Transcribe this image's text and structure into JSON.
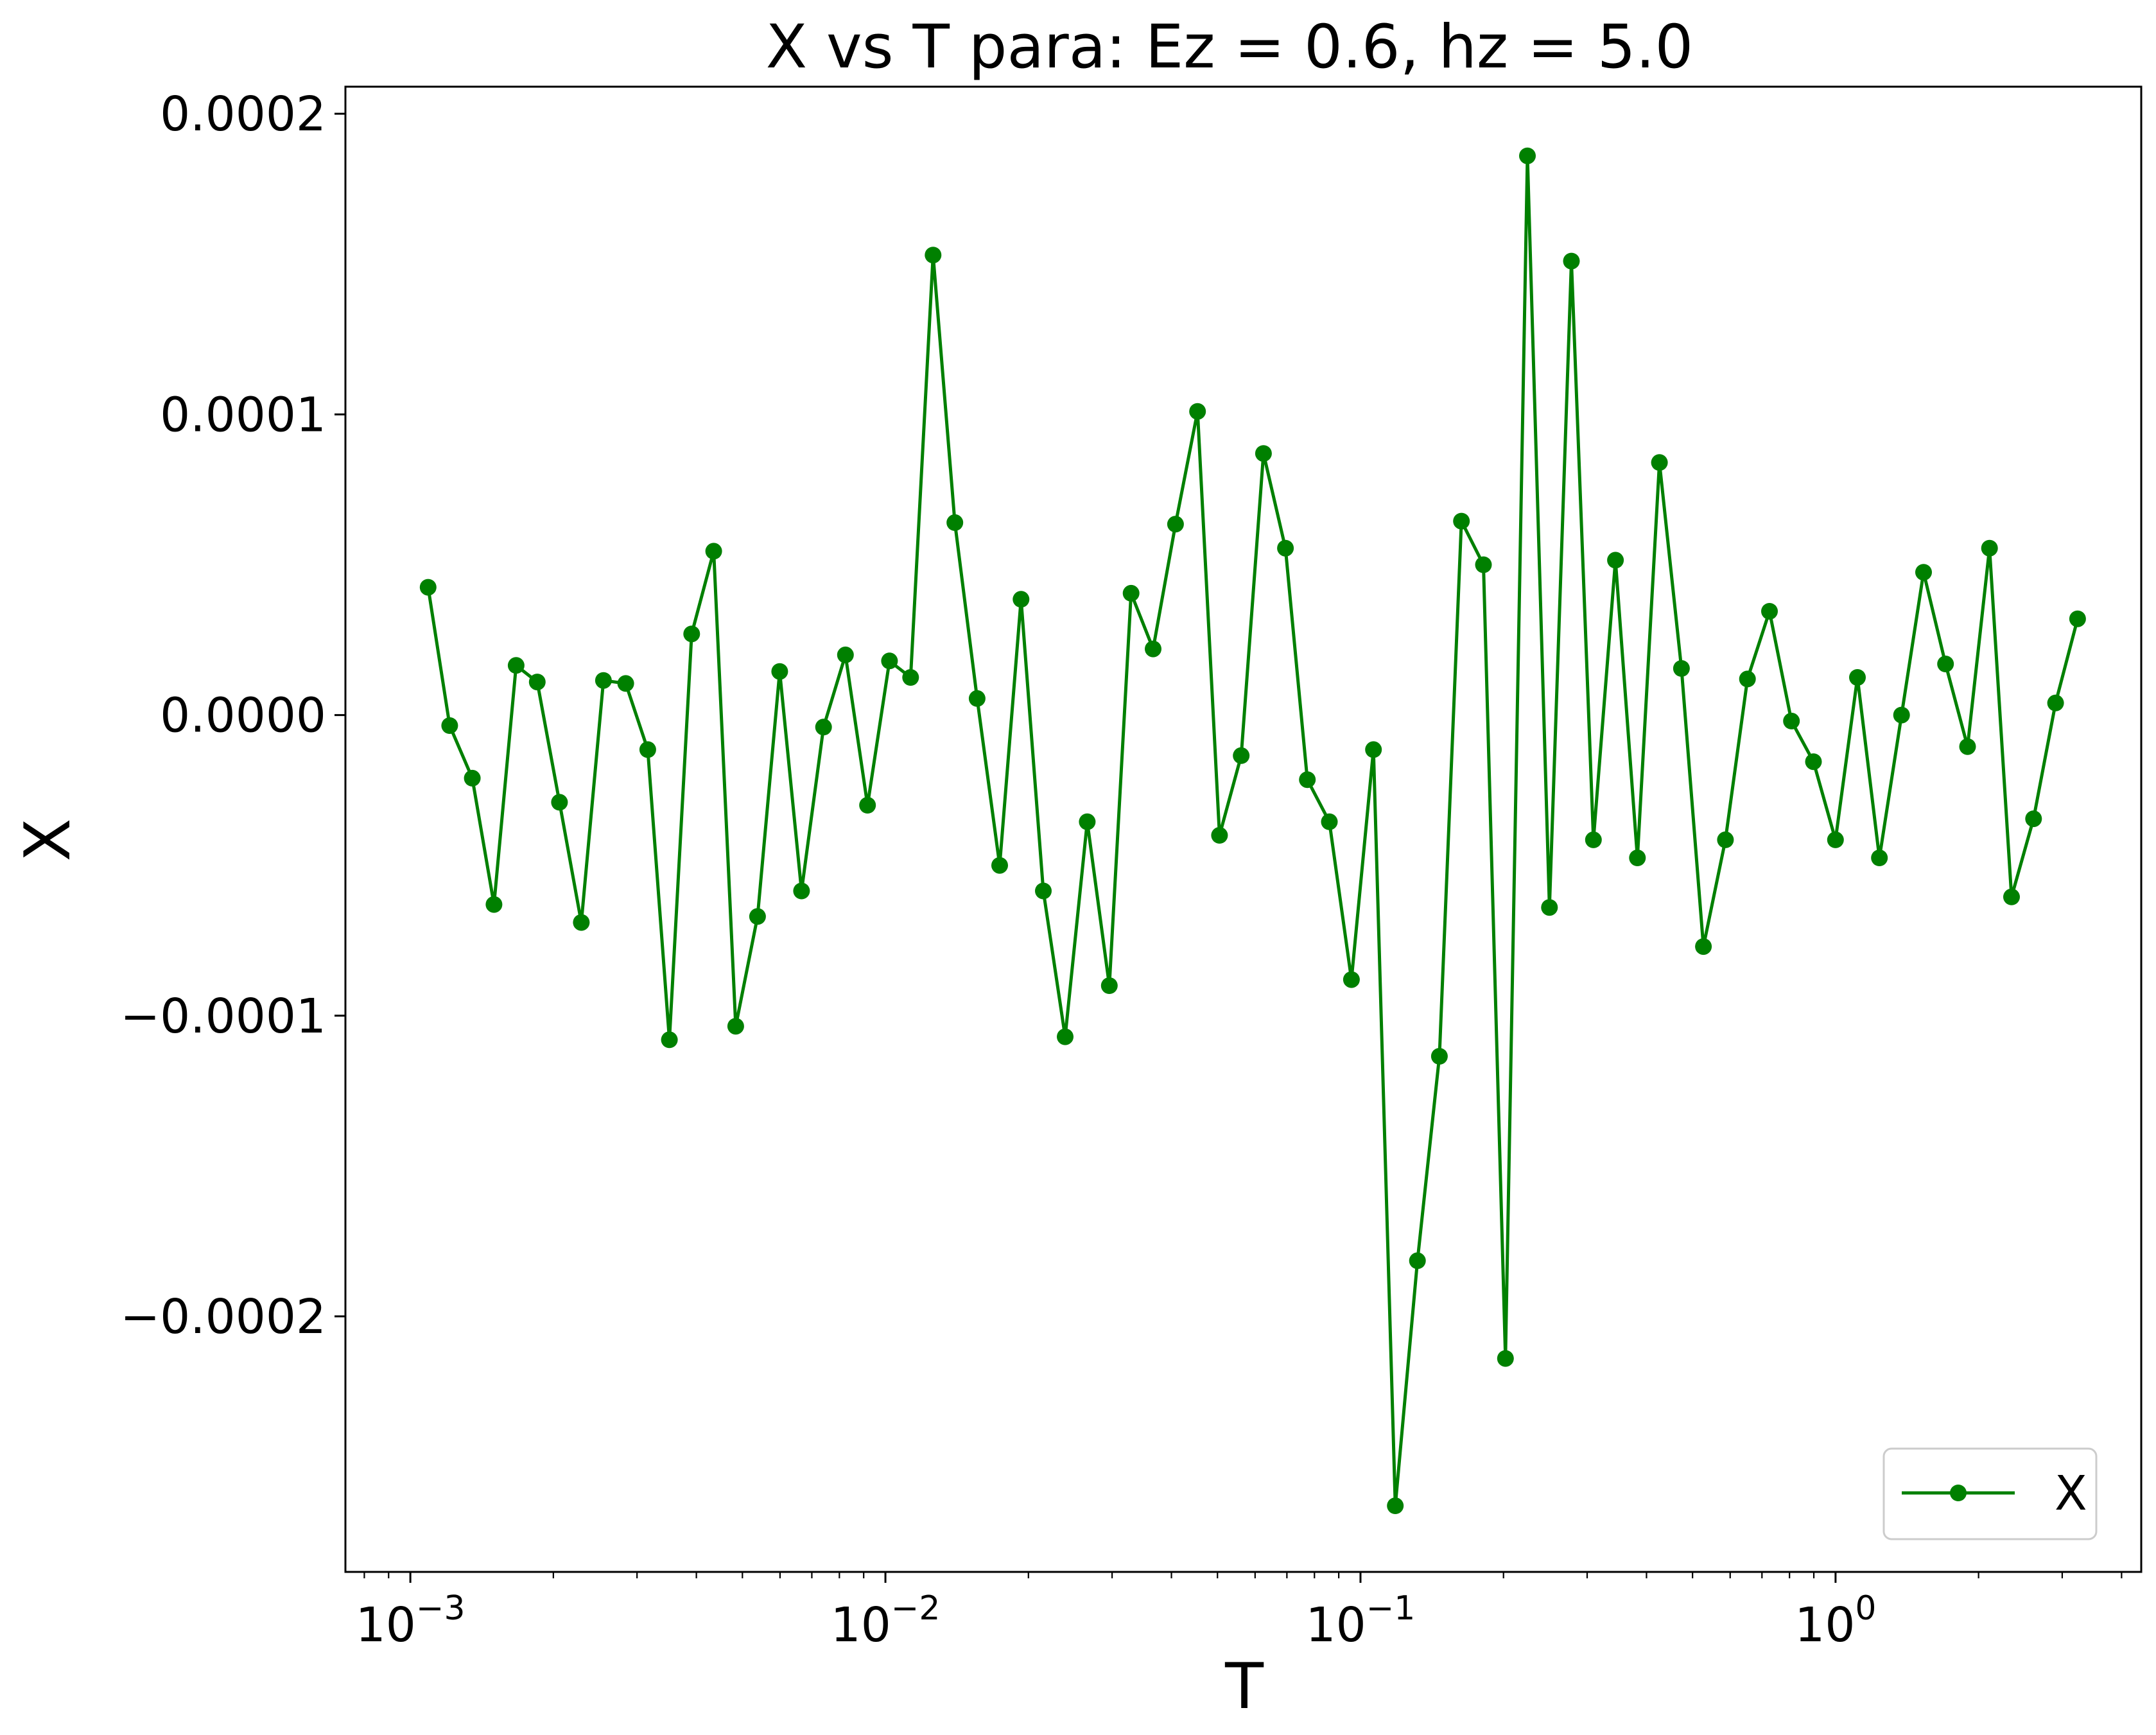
{
  "chart_data": {
    "type": "line",
    "title": "X vs T para: Ez = 0.6, hz = 5.0",
    "xlabel": "T",
    "ylabel": "X",
    "xscale": "log",
    "xlim": [
      0.00073,
      4.4
    ],
    "ylim": [
      -0.000285,
      0.000209
    ],
    "grid": false,
    "legend_position": "lower right",
    "series_color": "#008000",
    "marker": "circle",
    "x_ticks": [
      {
        "value": 0.001,
        "base": "10",
        "exp": "−3"
      },
      {
        "value": 0.01,
        "base": "10",
        "exp": "−2"
      },
      {
        "value": 0.1,
        "base": "10",
        "exp": "−1"
      },
      {
        "value": 1,
        "base": "10",
        "exp": "0"
      }
    ],
    "y_ticks": [
      {
        "value": 0.0002,
        "label": "0.0002"
      },
      {
        "value": 0.0001,
        "label": "0.0001"
      },
      {
        "value": 0.0,
        "label": "0.0000"
      },
      {
        "value": -0.0001,
        "label": "−0.0001"
      },
      {
        "value": -0.0002,
        "label": "−0.0002"
      }
    ],
    "series": [
      {
        "name": "X",
        "x": [
          0.00109,
          0.00121,
          0.00135,
          0.0015,
          0.00167,
          0.00185,
          0.00206,
          0.00229,
          0.00255,
          0.00284,
          0.00316,
          0.00351,
          0.00391,
          0.00435,
          0.00484,
          0.00538,
          0.00599,
          0.00666,
          0.00741,
          0.00824,
          0.00917,
          0.0102,
          0.0113,
          0.0126,
          0.014,
          0.0156,
          0.0174,
          0.0193,
          0.0215,
          0.0239,
          0.0266,
          0.0296,
          0.0329,
          0.0366,
          0.0408,
          0.0454,
          0.0505,
          0.0561,
          0.0625,
          0.0695,
          0.0773,
          0.086,
          0.0957,
          0.1065,
          0.1184,
          0.1318,
          0.1466,
          0.1631,
          0.1815,
          0.2019,
          0.2246,
          0.2499,
          0.278,
          0.3093,
          0.3441,
          0.3828,
          0.4259,
          0.4738,
          0.5271,
          0.5865,
          0.6525,
          0.7259,
          0.8076,
          0.8985,
          0.9996,
          1.112,
          1.237,
          1.377,
          1.532,
          1.704,
          1.896,
          2.109,
          2.347,
          2.611,
          2.905,
          3.232
        ],
        "y": [
          4.25e-05,
          -3.5e-06,
          -2.1e-05,
          -6.3e-05,
          1.65e-05,
          1.1e-05,
          -2.9e-05,
          -6.9e-05,
          1.15e-05,
          1.05e-05,
          -1.15e-05,
          -0.000108,
          2.7e-05,
          5.45e-05,
          -0.0001035,
          -6.7e-05,
          1.45e-05,
          -5.85e-05,
          -4e-06,
          2e-05,
          -3e-05,
          1.8e-05,
          1.25e-05,
          0.000153,
          6.4e-05,
          5.5e-06,
          -5e-05,
          3.85e-05,
          -5.85e-05,
          -0.000107,
          -3.55e-05,
          -9e-05,
          4.05e-05,
          2.2e-05,
          6.35e-05,
          0.000101,
          -4e-05,
          -1.35e-05,
          8.7e-05,
          5.55e-05,
          -2.15e-05,
          -3.55e-05,
          -8.8e-05,
          -1.15e-05,
          -0.000263,
          -0.0001815,
          -0.0001135,
          6.45e-05,
          5e-05,
          -0.000214,
          0.000186,
          -6.4e-05,
          0.000151,
          -4.15e-05,
          5.15e-05,
          -4.75e-05,
          8.4e-05,
          1.55e-05,
          -7.7e-05,
          -4.15e-05,
          1.2e-05,
          3.45e-05,
          -2e-06,
          -1.55e-05,
          -4.15e-05,
          1.25e-05,
          -4.75e-05,
          0.0,
          4.75e-05,
          1.7e-05,
          -1.05e-05,
          5.55e-05,
          -6.05e-05,
          -3.45e-05,
          4e-06,
          3.2e-05
        ]
      }
    ]
  }
}
